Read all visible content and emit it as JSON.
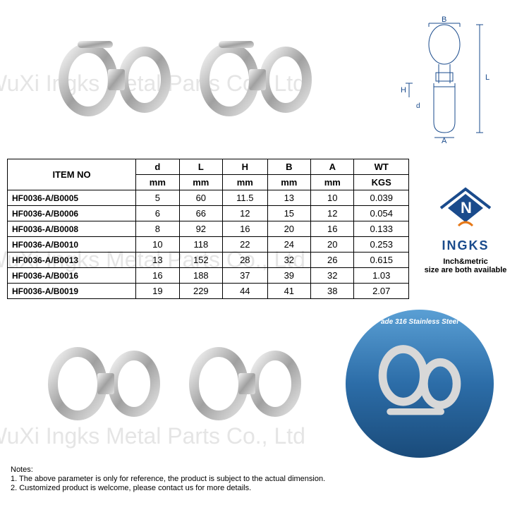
{
  "watermark": "WuXi Ingks Metal Parts Co., Ltd",
  "table": {
    "header_item": "ITEM NO",
    "cols": [
      "d",
      "L",
      "H",
      "B",
      "A",
      "WT"
    ],
    "units": [
      "mm",
      "mm",
      "mm",
      "mm",
      "mm",
      "KGS"
    ],
    "rows": [
      {
        "item": "HF0036-A/B0005",
        "vals": [
          "5",
          "60",
          "11.5",
          "13",
          "10",
          "0.039"
        ]
      },
      {
        "item": "HF0036-A/B0006",
        "vals": [
          "6",
          "66",
          "12",
          "15",
          "12",
          "0.054"
        ]
      },
      {
        "item": "HF0036-A/B0008",
        "vals": [
          "8",
          "92",
          "16",
          "20",
          "16",
          "0.133"
        ]
      },
      {
        "item": "HF0036-A/B0010",
        "vals": [
          "10",
          "118",
          "22",
          "24",
          "20",
          "0.253"
        ]
      },
      {
        "item": "HF0036-A/B0013",
        "vals": [
          "13",
          "152",
          "28",
          "32",
          "26",
          "0.615"
        ]
      },
      {
        "item": "HF0036-A/B0016",
        "vals": [
          "16",
          "188",
          "37",
          "39",
          "32",
          "1.03"
        ]
      },
      {
        "item": "HF0036-A/B0019",
        "vals": [
          "19",
          "229",
          "44",
          "41",
          "38",
          "2.07"
        ]
      }
    ]
  },
  "logo": {
    "brand": "INGKS",
    "tagline_l1": "Inch&metric",
    "tagline_l2": "size are both available",
    "colors": {
      "primary": "#1a4b8c",
      "accent": "#e67817"
    }
  },
  "circle": {
    "label": "ade 316 Stainless Steel"
  },
  "diagram_labels": {
    "B": "B",
    "L": "L",
    "H": "H",
    "d": "d",
    "A": "A"
  },
  "notes": {
    "title": "Notes:",
    "n1": "1. The above parameter is only for reference, the product is subject to the actual dimension.",
    "n2": "2. Customized product is welcome, please contact us for more details."
  }
}
